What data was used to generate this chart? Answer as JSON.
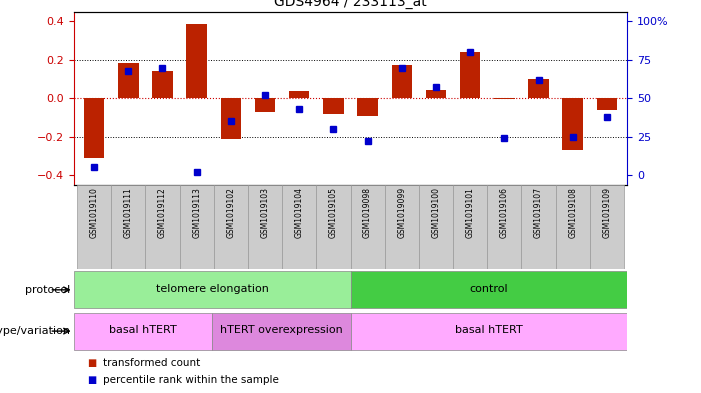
{
  "title": "GDS4964 / 233113_at",
  "samples": [
    "GSM1019110",
    "GSM1019111",
    "GSM1019112",
    "GSM1019113",
    "GSM1019102",
    "GSM1019103",
    "GSM1019104",
    "GSM1019105",
    "GSM1019098",
    "GSM1019099",
    "GSM1019100",
    "GSM1019101",
    "GSM1019106",
    "GSM1019107",
    "GSM1019108",
    "GSM1019109"
  ],
  "bar_values": [
    -0.31,
    0.185,
    0.14,
    0.385,
    -0.21,
    -0.07,
    0.04,
    -0.08,
    -0.09,
    0.175,
    0.045,
    0.24,
    -0.005,
    0.1,
    -0.27,
    -0.06
  ],
  "dot_values": [
    5,
    68,
    70,
    2,
    35,
    52,
    43,
    30,
    22,
    70,
    57,
    80,
    24,
    62,
    25,
    38
  ],
  "ylim": [
    -0.45,
    0.45
  ],
  "yticks_left": [
    -0.4,
    -0.2,
    0.0,
    0.2,
    0.4
  ],
  "yticks_right": [
    0,
    25,
    50,
    75,
    100
  ],
  "bar_color": "#bb2200",
  "dot_color": "#0000cc",
  "hline_color": "#cc0000",
  "dotline_color": "black",
  "background_color": "white",
  "plot_bg": "white",
  "protocol_groups": [
    {
      "label": "telomere elongation",
      "start": 0,
      "end": 8,
      "color": "#99ee99"
    },
    {
      "label": "control",
      "start": 8,
      "end": 16,
      "color": "#44cc44"
    }
  ],
  "genotype_groups": [
    {
      "label": "basal hTERT",
      "start": 0,
      "end": 4,
      "color": "#ffaaff"
    },
    {
      "label": "hTERT overexpression",
      "start": 4,
      "end": 8,
      "color": "#dd88dd"
    },
    {
      "label": "basal hTERT",
      "start": 8,
      "end": 16,
      "color": "#ffaaff"
    }
  ],
  "legend_items": [
    {
      "label": "transformed count",
      "color": "#bb2200"
    },
    {
      "label": "percentile rank within the sample",
      "color": "#0000cc"
    }
  ],
  "left_axis_color": "#cc0000",
  "right_axis_color": "#0000cc",
  "sample_box_color": "#cccccc",
  "sample_box_edge": "#999999"
}
